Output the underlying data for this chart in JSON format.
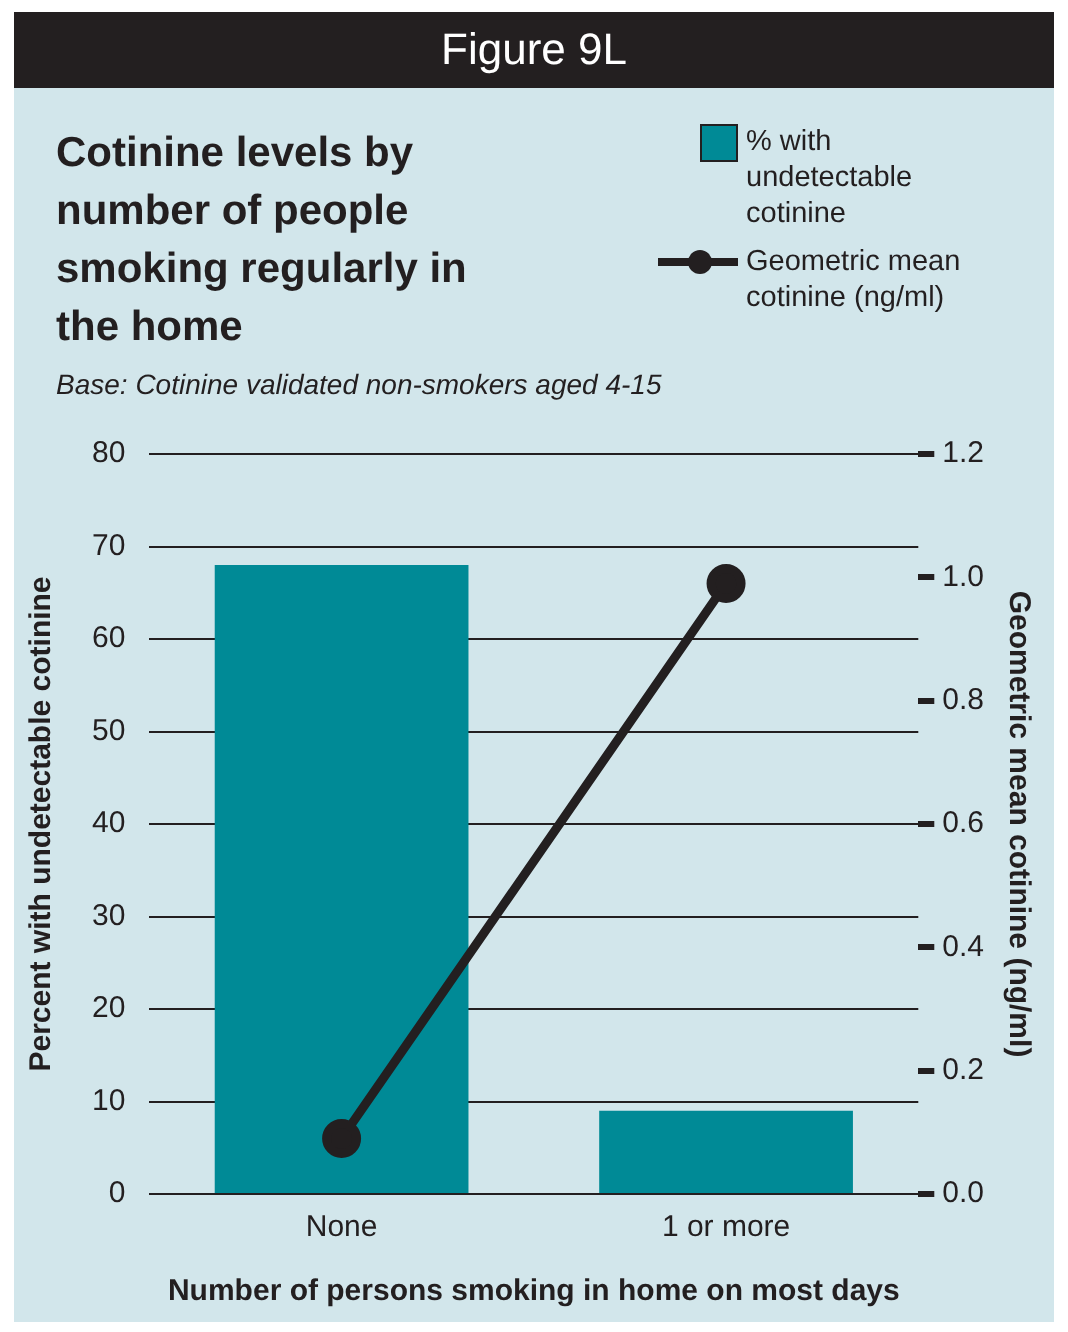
{
  "chart_data": {
    "type": "bar",
    "title": "Cotinine levels by number of people smoking regularly in the home",
    "subtitle": "Base: Cotinine validated non-smokers aged 4-15",
    "annotations": [
      "Figure 9L"
    ],
    "xlabel": "Number of persons smoking in home on most days",
    "ylabel": "Percent with undetectable cotinine",
    "y2label": "Geometric mean cotinine (ng/ml)",
    "categories": [
      "None",
      "1 or more"
    ],
    "series": [
      {
        "name": "% with undetectable cotinine",
        "color": "#008a96",
        "values": [
          68,
          9
        ]
      },
      {
        "name": "Geometric mean cotinine (ng/ml)",
        "type": "line",
        "axis": "y2",
        "color": "#231f20",
        "marker": "circle",
        "values": [
          0.09,
          0.99
        ]
      }
    ],
    "ylim": [
      0,
      80
    ],
    "yticks": [
      0,
      10,
      20,
      30,
      40,
      50,
      60,
      70,
      80
    ],
    "y2lim": [
      0,
      1.2
    ],
    "y2ticks": [
      {
        "value": 0,
        "label": "0.0"
      },
      {
        "value": 0.2,
        "label": "0.2"
      },
      {
        "value": 0.4,
        "label": "0.4"
      },
      {
        "value": 0.6,
        "label": "0.6"
      },
      {
        "value": 0.8,
        "label": "0.8"
      },
      {
        "value": 1,
        "label": "1.0"
      },
      {
        "value": 1.2,
        "label": "1.2"
      }
    ],
    "grid": "y",
    "legend": "top right"
  }
}
